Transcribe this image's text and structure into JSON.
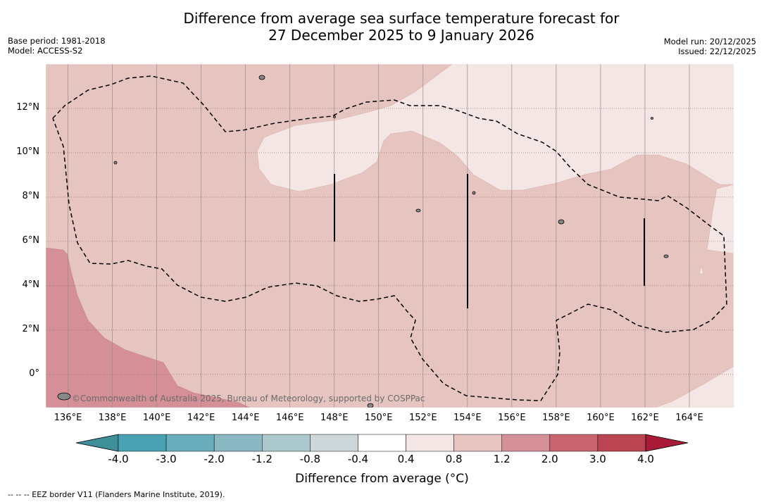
{
  "title": {
    "line1": "Difference from average sea surface temperature forecast for",
    "line2": "27 December 2025 to 9 January 2026"
  },
  "meta_left": {
    "base_period": "Base period: 1981-2018",
    "model": "Model: ACCESS-S2"
  },
  "meta_right": {
    "model_run": "Model run: 20/12/2025",
    "issued": "Issued: 22/12/2025"
  },
  "map": {
    "lon_range": [
      135,
      166
    ],
    "lat_range": [
      -1.5,
      14
    ],
    "lat_labels": [
      "12°N",
      "10°N",
      "8°N",
      "6°N",
      "4°N",
      "2°N",
      "0°"
    ],
    "lon_labels": [
      "136°E",
      "138°E",
      "140°E",
      "142°E",
      "144°E",
      "146°E",
      "148°E",
      "150°E",
      "152°E",
      "154°E",
      "156°E",
      "158°E",
      "160°E",
      "162°E",
      "164°E"
    ],
    "attribution": "©Commonwealth of Australia 2025, Bureau of Meteorology, supported by COSPPac",
    "base_color": "#e6c5c1",
    "warm_color": "#d48f97",
    "cool_color": "#f4e6e4"
  },
  "colorbar": {
    "title": "Difference from average (°C)",
    "tick_labels": [
      "-4.0",
      "-3.0",
      "-2.0",
      "-1.2",
      "-0.8",
      "-0.4",
      "0.4",
      "0.8",
      "1.2",
      "2.0",
      "3.0",
      "4.0"
    ],
    "colors": [
      "#3f8f98",
      "#48a2b3",
      "#6aaebd",
      "#8ab9c4",
      "#abc9cc",
      "#cdd7d9",
      "#ffffff",
      "#f4e6e4",
      "#e6c5c1",
      "#d48f97",
      "#c96571",
      "#bb4453",
      "#a81a37"
    ]
  },
  "footnote": "--  --  -- EEZ border V11 (Flanders Marine Institute, 2019)."
}
